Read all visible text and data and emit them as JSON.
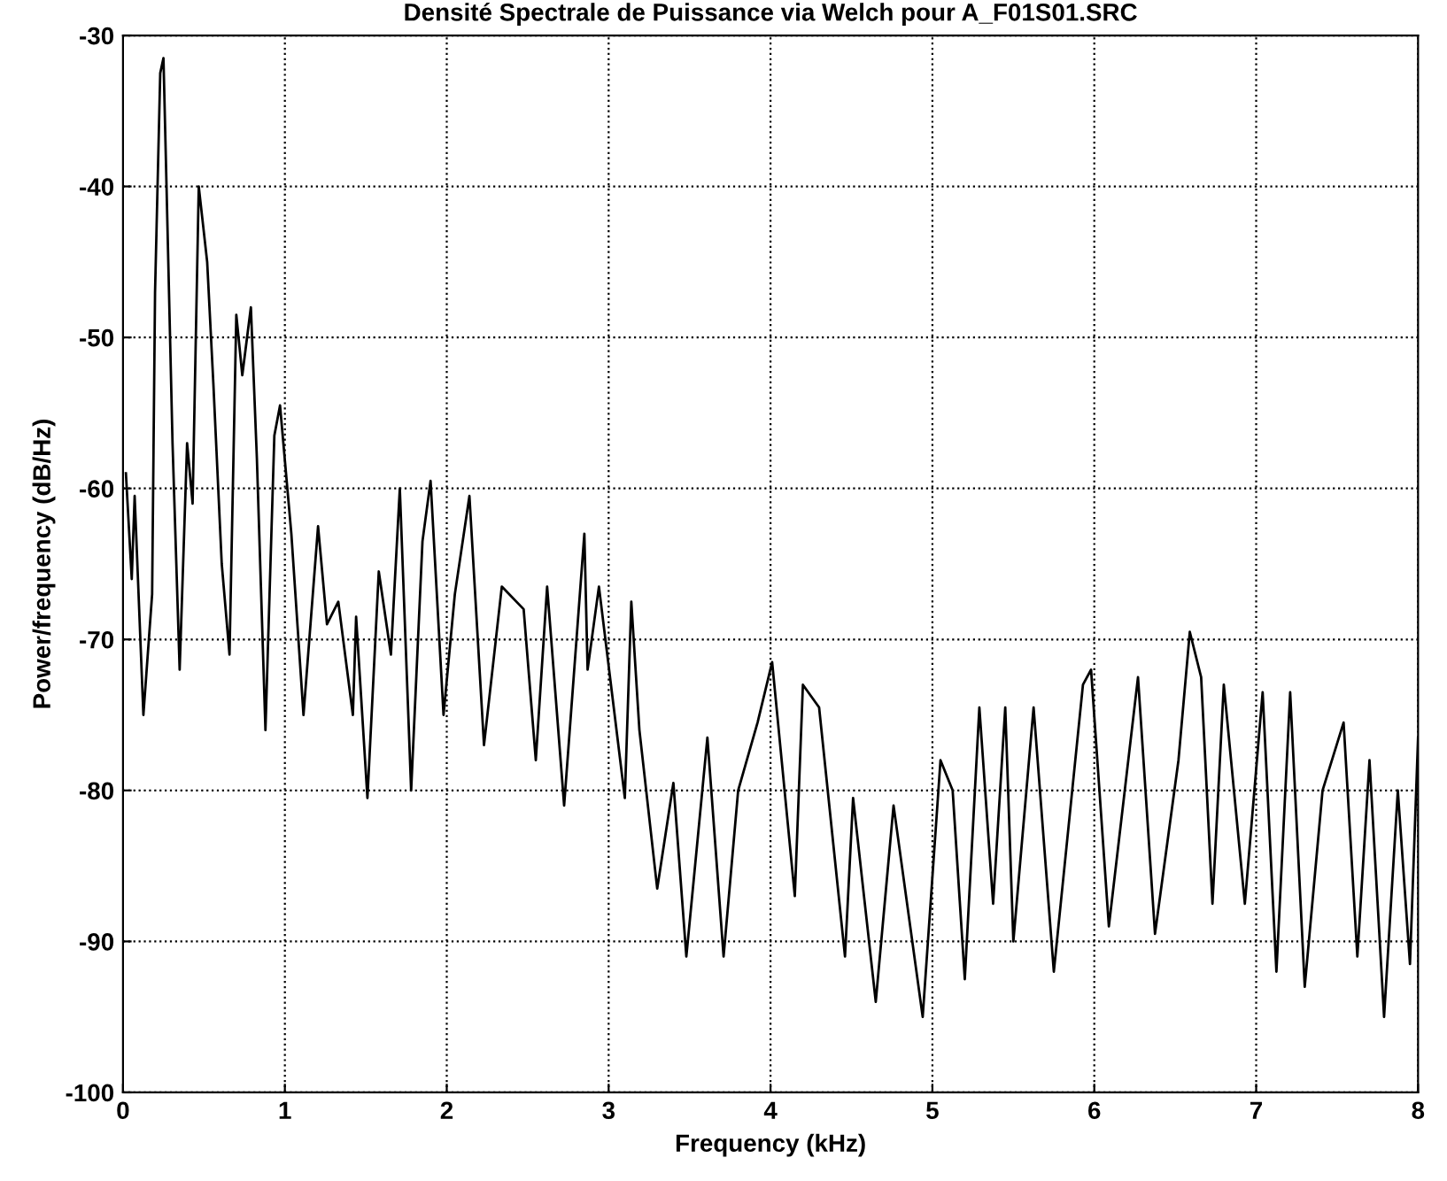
{
  "chart_data": {
    "type": "line",
    "title": "Densité Spectrale de Puissance via Welch pour A_F01S01.SRC",
    "xlabel": "Frequency (kHz)",
    "ylabel": "Power/frequency (dB/Hz)",
    "xlim": [
      0,
      8
    ],
    "ylim": [
      -100,
      -30
    ],
    "xticks": [
      0,
      1,
      2,
      3,
      4,
      5,
      6,
      7,
      8
    ],
    "yticks": [
      -100,
      -90,
      -80,
      -70,
      -60,
      -50,
      -40,
      -30
    ],
    "grid": true,
    "line_style": "solid",
    "marker": "none",
    "series": [
      {
        "color": "#000000",
        "x": [
          0.018,
          0.054,
          0.072,
          0.126,
          0.18,
          0.198,
          0.23,
          0.25,
          0.27,
          0.306,
          0.35,
          0.396,
          0.43,
          0.468,
          0.52,
          0.558,
          0.61,
          0.658,
          0.7,
          0.737,
          0.79,
          0.827,
          0.88,
          0.935,
          0.97,
          1.04,
          1.115,
          1.205,
          1.26,
          1.33,
          1.42,
          1.44,
          1.51,
          1.58,
          1.655,
          1.71,
          1.78,
          1.85,
          1.9,
          1.98,
          2.05,
          2.14,
          2.23,
          2.34,
          2.475,
          2.55,
          2.62,
          2.725,
          2.85,
          2.87,
          2.94,
          3.1,
          3.14,
          3.19,
          3.3,
          3.4,
          3.48,
          3.61,
          3.71,
          3.8,
          3.92,
          4.01,
          4.15,
          4.2,
          4.3,
          4.46,
          4.51,
          4.65,
          4.76,
          4.94,
          5.05,
          5.125,
          5.2,
          5.29,
          5.375,
          5.45,
          5.5,
          5.625,
          5.75,
          5.93,
          5.98,
          6.09,
          6.27,
          6.375,
          6.52,
          6.59,
          6.66,
          6.73,
          6.8,
          6.93,
          7.04,
          7.125,
          7.21,
          7.3,
          7.41,
          7.54,
          7.625,
          7.7,
          7.79,
          7.875,
          7.95,
          8.0
        ],
        "values": [
          -59,
          -66,
          -60.5,
          -75,
          -67,
          -47,
          -32.5,
          -31.5,
          -40.5,
          -57,
          -72,
          -57,
          -61,
          -40,
          -45,
          -53,
          -65,
          -71,
          -48.5,
          -52.5,
          -48,
          -58,
          -76,
          -56.5,
          -54.5,
          -63,
          -75,
          -62.5,
          -69,
          -67.5,
          -75,
          -68.5,
          -80.5,
          -65.5,
          -71,
          -60,
          -80,
          -63.5,
          -59.5,
          -75,
          -67,
          -60.5,
          -77,
          -66.5,
          -68,
          -78,
          -66.5,
          -81,
          -63,
          -72,
          -66.5,
          -80.5,
          -67.5,
          -76,
          -86.5,
          -79.5,
          -91,
          -76.5,
          -91,
          -80,
          -75.5,
          -71.5,
          -87,
          -73,
          -74.5,
          -91,
          -80.5,
          -94,
          -81,
          -95,
          -78,
          -80,
          -92.5,
          -74.5,
          -87.5,
          -74.5,
          -90,
          -74.5,
          -92,
          -73,
          -72,
          -89,
          -72.5,
          -89.5,
          -78,
          -69.5,
          -72.5,
          -87.5,
          -73,
          -87.5,
          -73.5,
          -92,
          -73.5,
          -93,
          -80,
          -75.5,
          -91,
          -78,
          -95,
          -80,
          -91.5,
          -76.5
        ]
      }
    ]
  }
}
